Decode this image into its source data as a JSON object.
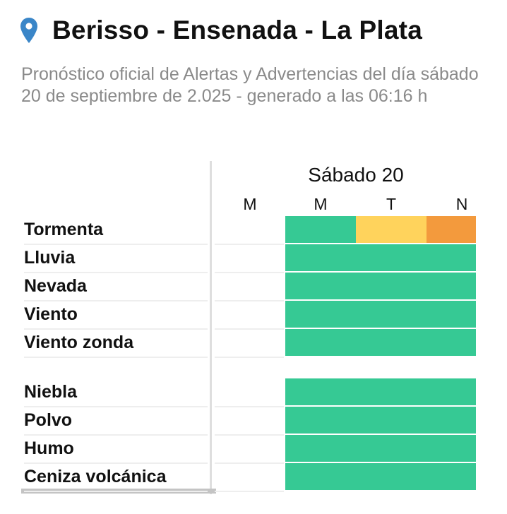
{
  "header": {
    "location_icon": "map-pin-icon",
    "title": "Berisso - Ensenada - La Plata",
    "subtitle": "Pronóstico oficial de Alertas y Advertencias del día sábado 20 de septiembre de 2.025 - generado a las 06:16 h"
  },
  "table": {
    "day": "Sábado 20",
    "columns": [
      "M",
      "M",
      "T",
      "N"
    ],
    "level_colors": {
      "verde": "#36c994",
      "amarillo": "#ffd35c",
      "naranja": "#f39a3d"
    },
    "group1": [
      {
        "label": "Tormenta",
        "levels": [
          null,
          "verde",
          "amarillo",
          "naranja"
        ]
      },
      {
        "label": "Lluvia",
        "levels": [
          null,
          "verde",
          "verde",
          "verde"
        ]
      },
      {
        "label": "Nevada",
        "levels": [
          null,
          "verde",
          "verde",
          "verde"
        ]
      },
      {
        "label": "Viento",
        "levels": [
          null,
          "verde",
          "verde",
          "verde"
        ]
      },
      {
        "label": "Viento zonda",
        "levels": [
          null,
          "verde",
          "verde",
          "verde"
        ]
      }
    ],
    "group2": [
      {
        "label": "Niebla",
        "levels": [
          null,
          "verde",
          "verde",
          "verde"
        ]
      },
      {
        "label": "Polvo",
        "levels": [
          null,
          "verde",
          "verde",
          "verde"
        ]
      },
      {
        "label": "Humo",
        "levels": [
          null,
          "verde",
          "verde",
          "verde"
        ]
      },
      {
        "label": "Ceniza volcánica",
        "levels": [
          null,
          "verde",
          "verde",
          "verde"
        ]
      }
    ]
  }
}
